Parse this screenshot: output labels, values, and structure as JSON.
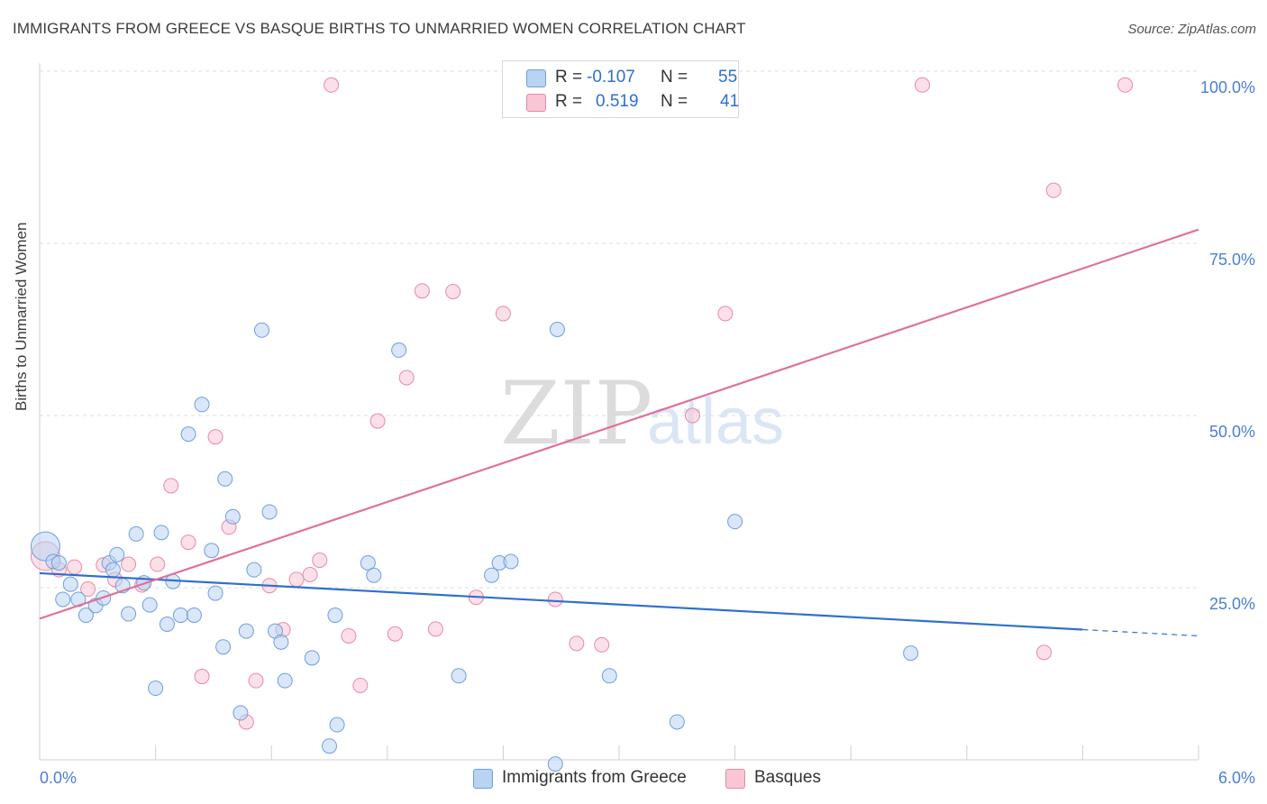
{
  "header": {
    "title": "IMMIGRANTS FROM GREECE VS BASQUE BIRTHS TO UNMARRIED WOMEN CORRELATION CHART",
    "source": "Source: ZipAtlas.com"
  },
  "watermark": {
    "zip": "ZIP",
    "atlas": "atlas"
  },
  "legend": {
    "rows": [
      {
        "r_label": "R =",
        "r_value": "-0.107",
        "n_label": "N =",
        "n_value": "55"
      },
      {
        "r_label": "R =",
        "r_value": "0.519",
        "n_label": "N =",
        "n_value": "41"
      }
    ]
  },
  "colors": {
    "greece_fill": "#b9d3f3",
    "greece_stroke": "#6f9fdc",
    "greece_line": "#2f6fd0",
    "basque_fill": "#f8c6d5",
    "basque_stroke": "#e68aa8",
    "basque_line": "#e0709a",
    "axis_text": "#4a7fd4",
    "grid": "#dddddd"
  },
  "chart_data": {
    "type": "scatter",
    "title": "IMMIGRANTS FROM GREECE VS BASQUE BIRTHS TO UNMARRIED WOMEN CORRELATION CHART",
    "xlabel": "",
    "ylabel": "Births to Unmarried Women",
    "xlim": [
      0,
      6
    ],
    "ylim": [
      0,
      100
    ],
    "x_tick_labels": [
      "0.0%",
      "6.0%"
    ],
    "y_tick_labels": [
      "25.0%",
      "50.0%",
      "75.0%",
      "100.0%"
    ],
    "y_ticks": [
      25,
      50,
      75,
      100
    ],
    "grid": true,
    "legend_position": "bottom",
    "series": [
      {
        "name": "Immigrants from Greece",
        "r": -0.107,
        "n": 55,
        "trend": {
          "x": [
            0,
            6
          ],
          "y": [
            27.1,
            18.0
          ],
          "solid_until_x": 5.4
        },
        "points": [
          {
            "x": 0.03,
            "y": 31.0,
            "big": true
          },
          {
            "x": 0.07,
            "y": 28.8
          },
          {
            "x": 0.1,
            "y": 28.6
          },
          {
            "x": 0.12,
            "y": 23.3
          },
          {
            "x": 0.16,
            "y": 25.5
          },
          {
            "x": 0.2,
            "y": 23.3
          },
          {
            "x": 0.24,
            "y": 21.0
          },
          {
            "x": 0.29,
            "y": 22.4
          },
          {
            "x": 0.33,
            "y": 23.5
          },
          {
            "x": 0.36,
            "y": 28.6
          },
          {
            "x": 0.38,
            "y": 27.6
          },
          {
            "x": 0.4,
            "y": 29.8
          },
          {
            "x": 0.43,
            "y": 25.3
          },
          {
            "x": 0.46,
            "y": 21.2
          },
          {
            "x": 0.5,
            "y": 32.8
          },
          {
            "x": 0.54,
            "y": 25.7
          },
          {
            "x": 0.57,
            "y": 22.5
          },
          {
            "x": 0.6,
            "y": 10.4
          },
          {
            "x": 0.63,
            "y": 33.0
          },
          {
            "x": 0.66,
            "y": 19.7
          },
          {
            "x": 0.69,
            "y": 25.9
          },
          {
            "x": 0.73,
            "y": 21.0
          },
          {
            "x": 0.77,
            "y": 47.3
          },
          {
            "x": 0.8,
            "y": 21.0
          },
          {
            "x": 0.84,
            "y": 51.6
          },
          {
            "x": 0.89,
            "y": 30.4
          },
          {
            "x": 0.91,
            "y": 24.2
          },
          {
            "x": 0.95,
            "y": 16.4
          },
          {
            "x": 0.96,
            "y": 40.8
          },
          {
            "x": 1.0,
            "y": 35.3
          },
          {
            "x": 1.04,
            "y": 6.8
          },
          {
            "x": 1.07,
            "y": 18.7
          },
          {
            "x": 1.11,
            "y": 27.6
          },
          {
            "x": 1.15,
            "y": 62.4
          },
          {
            "x": 1.19,
            "y": 36.0
          },
          {
            "x": 1.22,
            "y": 18.7
          },
          {
            "x": 1.25,
            "y": 17.1
          },
          {
            "x": 1.27,
            "y": 11.5
          },
          {
            "x": 1.41,
            "y": 14.8
          },
          {
            "x": 1.5,
            "y": 2.0
          },
          {
            "x": 1.53,
            "y": 21.0
          },
          {
            "x": 1.54,
            "y": 5.1
          },
          {
            "x": 1.7,
            "y": 28.6
          },
          {
            "x": 1.73,
            "y": 26.8
          },
          {
            "x": 1.86,
            "y": 59.5
          },
          {
            "x": 2.17,
            "y": 12.2
          },
          {
            "x": 2.34,
            "y": 26.8
          },
          {
            "x": 2.38,
            "y": 28.6
          },
          {
            "x": 2.44,
            "y": 28.8
          },
          {
            "x": 2.67,
            "y": -0.6
          },
          {
            "x": 2.68,
            "y": 62.5
          },
          {
            "x": 2.95,
            "y": 12.2
          },
          {
            "x": 3.3,
            "y": 5.5
          },
          {
            "x": 3.6,
            "y": 34.6
          },
          {
            "x": 4.51,
            "y": 15.5
          }
        ]
      },
      {
        "name": "Basques",
        "r": 0.519,
        "n": 41,
        "trend": {
          "x": [
            0,
            6
          ],
          "y": [
            20.5,
            77.0
          ]
        },
        "points": [
          {
            "x": 0.03,
            "y": 29.6,
            "big": true
          },
          {
            "x": 0.1,
            "y": 27.6
          },
          {
            "x": 0.18,
            "y": 28.0
          },
          {
            "x": 0.25,
            "y": 24.8
          },
          {
            "x": 0.33,
            "y": 28.3
          },
          {
            "x": 0.39,
            "y": 26.2
          },
          {
            "x": 0.46,
            "y": 28.4
          },
          {
            "x": 0.53,
            "y": 25.4
          },
          {
            "x": 0.61,
            "y": 28.4
          },
          {
            "x": 0.68,
            "y": 39.8
          },
          {
            "x": 0.77,
            "y": 31.6
          },
          {
            "x": 0.84,
            "y": 12.1
          },
          {
            "x": 0.91,
            "y": 46.9
          },
          {
            "x": 0.98,
            "y": 33.8
          },
          {
            "x": 1.07,
            "y": 5.5
          },
          {
            "x": 1.12,
            "y": 11.5
          },
          {
            "x": 1.19,
            "y": 25.3
          },
          {
            "x": 1.26,
            "y": 18.9
          },
          {
            "x": 1.33,
            "y": 26.2
          },
          {
            "x": 1.4,
            "y": 26.9
          },
          {
            "x": 1.45,
            "y": 29.0
          },
          {
            "x": 1.51,
            "y": 98.0
          },
          {
            "x": 1.6,
            "y": 18.0
          },
          {
            "x": 1.66,
            "y": 10.8
          },
          {
            "x": 1.75,
            "y": 49.2
          },
          {
            "x": 1.84,
            "y": 18.3
          },
          {
            "x": 1.9,
            "y": 55.5
          },
          {
            "x": 1.98,
            "y": 68.1
          },
          {
            "x": 2.05,
            "y": 19.0
          },
          {
            "x": 2.14,
            "y": 68.0
          },
          {
            "x": 2.26,
            "y": 23.6
          },
          {
            "x": 2.4,
            "y": 64.8
          },
          {
            "x": 2.67,
            "y": 23.3
          },
          {
            "x": 2.78,
            "y": 16.9
          },
          {
            "x": 2.91,
            "y": 16.7
          },
          {
            "x": 3.38,
            "y": 50.0
          },
          {
            "x": 3.55,
            "y": 64.8
          },
          {
            "x": 4.57,
            "y": 98.0
          },
          {
            "x": 5.2,
            "y": 15.6
          },
          {
            "x": 5.25,
            "y": 82.7
          },
          {
            "x": 5.62,
            "y": 98.0
          }
        ]
      }
    ]
  }
}
